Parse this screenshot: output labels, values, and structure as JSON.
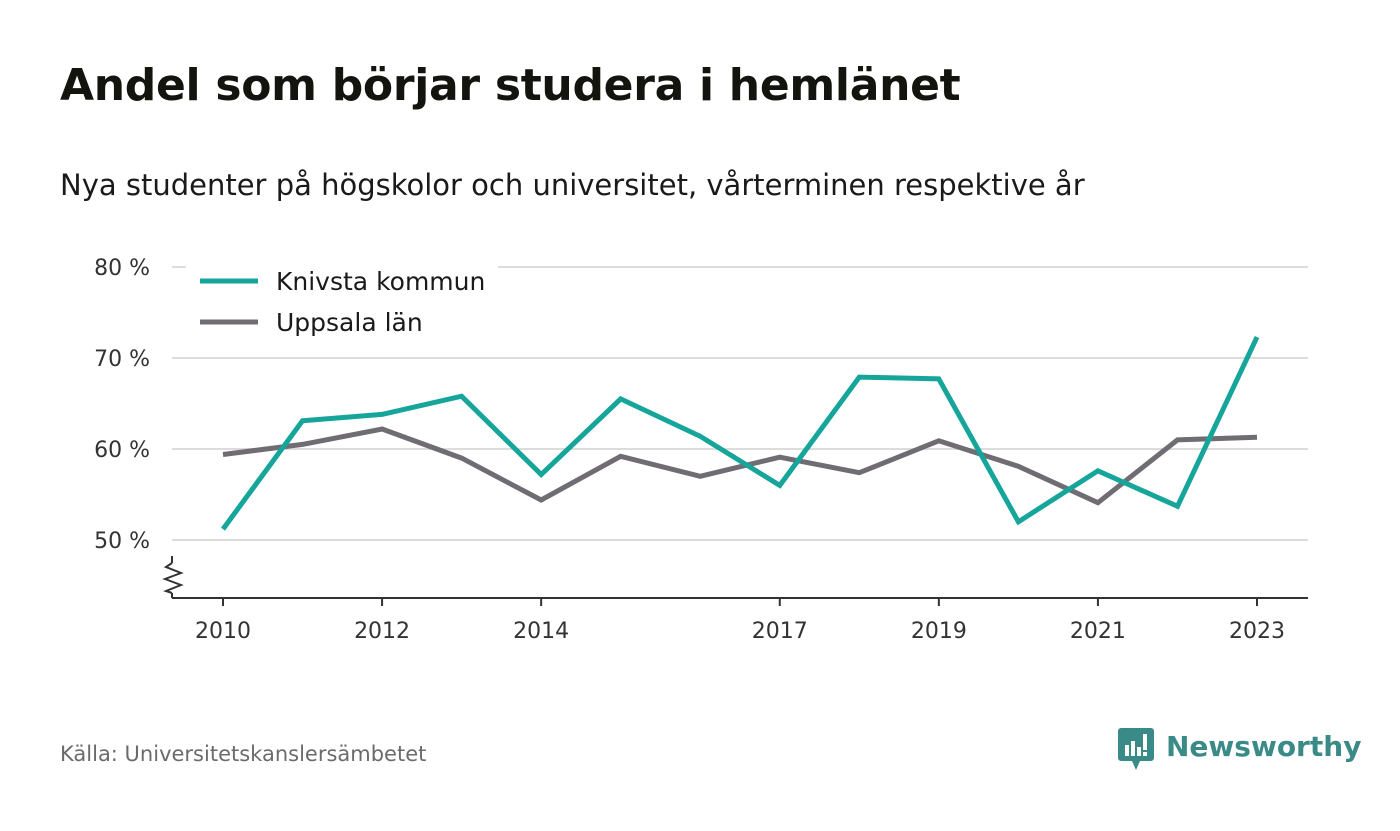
{
  "header": {
    "title": "Andel som börjar studera i hemlänet",
    "subtitle": "Nya studenter på högskolor och universitet, vårterminen respektive år"
  },
  "footer": {
    "source": "Källa: Universitetskanslersämbetet",
    "brand": "Newsworthy"
  },
  "colors": {
    "knivsta": "#16a59a",
    "uppsala": "#6f6c73",
    "grid": "#dcdcdc",
    "axis": "#333333",
    "brand": "#3a8a88"
  },
  "chart_data": {
    "type": "line",
    "title": "Andel som börjar studera i hemlänet",
    "subtitle": "Nya studenter på högskolor och universitet, vårterminen respektive år",
    "x": [
      2010,
      2011,
      2012,
      2013,
      2014,
      2015,
      2016,
      2017,
      2018,
      2019,
      2020,
      2021,
      2022,
      2023
    ],
    "x_tick_labels": [
      "2010",
      "2012",
      "2014",
      "2017",
      "2019",
      "2021",
      "2023"
    ],
    "y_ticks": [
      50,
      60,
      70,
      80
    ],
    "y_tick_labels": [
      "50 %",
      "60 %",
      "70 %",
      "80 %"
    ],
    "ylim": [
      44,
      80
    ],
    "y_axis_break": true,
    "grid": true,
    "legend_position": "top-left",
    "series": [
      {
        "name": "Knivsta kommun",
        "color": "#16a59a",
        "values": [
          51.2,
          63.1,
          63.8,
          65.8,
          57.2,
          65.5,
          61.4,
          56.0,
          67.9,
          67.7,
          52.0,
          57.6,
          53.7,
          72.3
        ]
      },
      {
        "name": "Uppsala län",
        "color": "#6f6c73",
        "values": [
          59.4,
          60.5,
          62.2,
          59.0,
          54.4,
          59.2,
          57.0,
          59.1,
          57.4,
          60.9,
          58.1,
          54.1,
          61.0,
          61.3
        ]
      }
    ]
  }
}
